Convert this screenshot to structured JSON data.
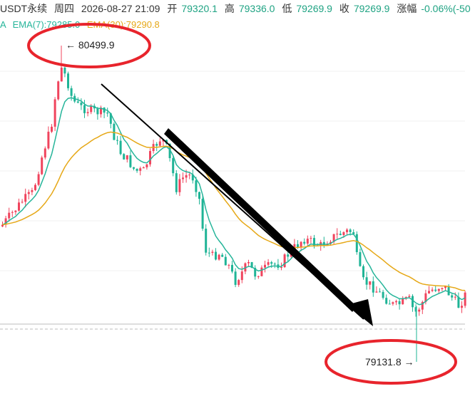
{
  "header": {
    "symbol": "USDT永续",
    "weekday": "周四",
    "datetime": "2026-08-27 21:09",
    "open_label": "开",
    "open_value": "79320.1",
    "high_label": "高",
    "high_value": "79336.0",
    "low_label": "低",
    "low_value": "79269.9",
    "close_label": "收",
    "close_value": "79269.9",
    "change_label": "涨幅",
    "change_value": "-0.06%(-50"
  },
  "ema_legend": {
    "prefix": "A",
    "ema7": "EMA(7):79285.0",
    "ema30": "EMA(30):79290.8"
  },
  "annotations": {
    "high_label": "← 80499.9",
    "low_label": "79131.8 →"
  },
  "colors": {
    "up": "#f0445d",
    "down": "#1fb496",
    "ema7": "#26b59a",
    "ema30": "#e6a817",
    "circle": "#e8242c",
    "arrow": "#000000"
  },
  "chart_data": {
    "type": "candlestick",
    "y_range": [
      79131.8,
      80499.9
    ],
    "highest": 80499.9,
    "lowest": 79131.8,
    "series": [
      {
        "name": "EMA(7)",
        "last": 79285.0
      },
      {
        "name": "EMA(30)",
        "last": 79290.8
      }
    ]
  }
}
